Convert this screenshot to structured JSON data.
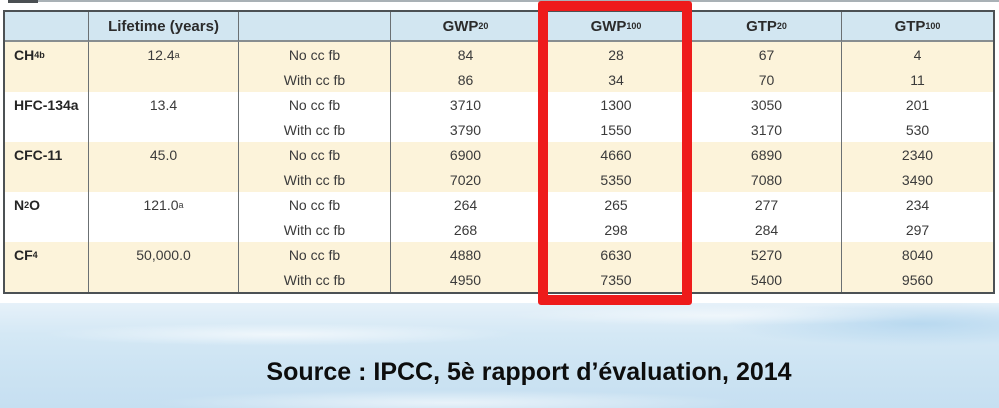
{
  "table": {
    "headers": {
      "gas": "",
      "lifetime": "Lifetime (years)",
      "feedback": "",
      "metrics": [
        {
          "base": "GWP",
          "sub": "20"
        },
        {
          "base": "GWP",
          "sub": "100"
        },
        {
          "base": "GTP",
          "sub": "20"
        },
        {
          "base": "GTP",
          "sub": "100"
        }
      ]
    },
    "groups": [
      {
        "gas": {
          "pre": "CH",
          "sub": "4",
          "post": "",
          "sup": "b"
        },
        "lifetime": {
          "value": "12.4",
          "sup": "a"
        },
        "rows": [
          {
            "label": "No cc fb",
            "gwp20": "84",
            "gwp100": "28",
            "gtp20": "67",
            "gtp100": "4"
          },
          {
            "label": "With cc fb",
            "gwp20": "86",
            "gwp100": "34",
            "gtp20": "70",
            "gtp100": "11"
          }
        ]
      },
      {
        "gas": {
          "pre": "HFC-134a"
        },
        "lifetime": {
          "value": "13.4"
        },
        "rows": [
          {
            "label": "No cc fb",
            "gwp20": "3710",
            "gwp100": "1300",
            "gtp20": "3050",
            "gtp100": "201"
          },
          {
            "label": "With cc fb",
            "gwp20": "3790",
            "gwp100": "1550",
            "gtp20": "3170",
            "gtp100": "530"
          }
        ]
      },
      {
        "gas": {
          "pre": "CFC-11"
        },
        "lifetime": {
          "value": "45.0"
        },
        "rows": [
          {
            "label": "No cc fb",
            "gwp20": "6900",
            "gwp100": "4660",
            "gtp20": "6890",
            "gtp100": "2340"
          },
          {
            "label": "With cc fb",
            "gwp20": "7020",
            "gwp100": "5350",
            "gtp20": "7080",
            "gtp100": "3490"
          }
        ]
      },
      {
        "gas": {
          "pre": "N",
          "sub": "2",
          "post": "O"
        },
        "lifetime": {
          "value": "121.0",
          "sup": "a"
        },
        "rows": [
          {
            "label": "No cc fb",
            "gwp20": "264",
            "gwp100": "265",
            "gtp20": "277",
            "gtp100": "234"
          },
          {
            "label": "With cc fb",
            "gwp20": "268",
            "gwp100": "298",
            "gtp20": "284",
            "gtp100": "297"
          }
        ]
      },
      {
        "gas": {
          "pre": "CF",
          "sub": "4"
        },
        "lifetime": {
          "value": "50,000.0"
        },
        "rows": [
          {
            "label": "No cc fb",
            "gwp20": "4880",
            "gwp100": "6630",
            "gtp20": "5270",
            "gtp100": "8040"
          },
          {
            "label": "With cc fb",
            "gwp20": "4950",
            "gwp100": "7350",
            "gtp20": "5400",
            "gtp100": "9560"
          }
        ]
      }
    ]
  },
  "highlight": {
    "highlighted_column": "GWP100",
    "color": "#ee1b1b"
  },
  "source": {
    "text": "Source : IPCC, 5è rapport d’évaluation, 2014"
  },
  "colors": {
    "header_bg": "#d2e6f1",
    "row_cream_bg": "#fcf3da",
    "row_white_bg": "#ffffff",
    "sky_bg": "#cde4f3",
    "border": "#4c5154"
  }
}
